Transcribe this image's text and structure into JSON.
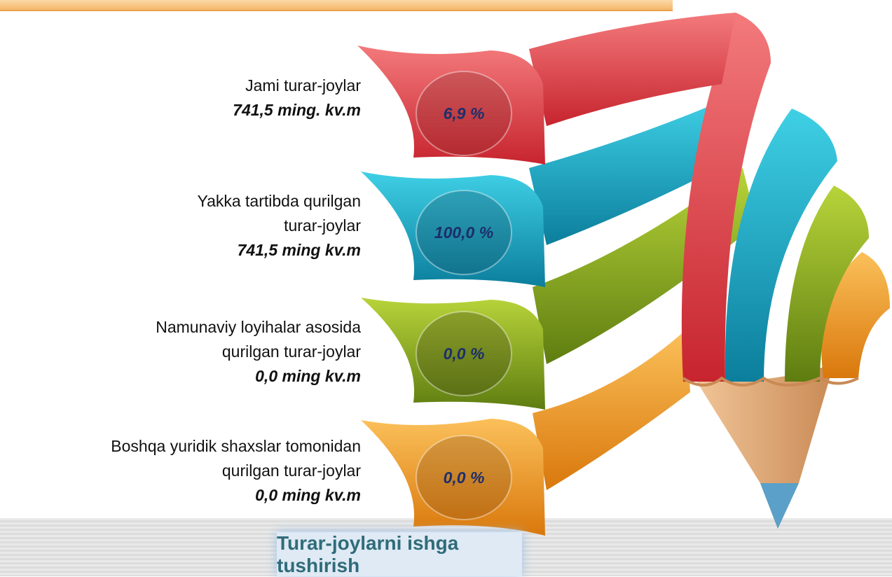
{
  "items": [
    {
      "label": [
        "Jami turar-joylar"
      ],
      "amount": "741,5   ming. kv.m",
      "percent": "6,9  %"
    },
    {
      "label": [
        "Yakka tartibda qurilgan",
        "turar-joylar"
      ],
      "amount": "741,5  ming kv.m",
      "percent": "100,0 %"
    },
    {
      "label": [
        "Namunaviy loyihalar asosida",
        "qurilgan turar-joylar"
      ],
      "amount": "0,0   ming kv.m",
      "percent": "0,0  %"
    },
    {
      "label": [
        "Boshqa yuridik shaxslar tomonidan",
        "qurilgan turar-joylar"
      ],
      "amount": "0,0  ming kv.m",
      "percent": "0,0  %"
    }
  ],
  "footer": {
    "title": "Turar-joylarni ishga tushirish"
  }
}
